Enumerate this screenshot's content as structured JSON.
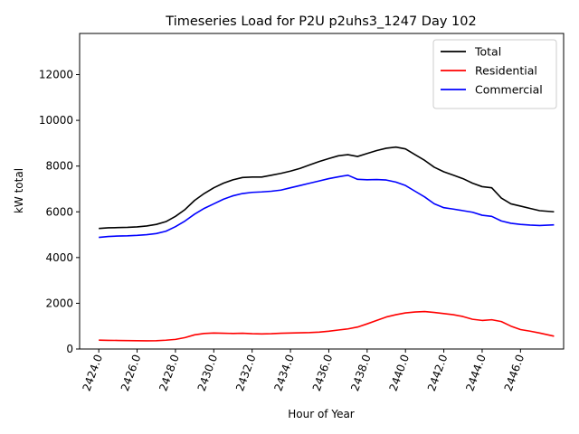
{
  "chart_data": {
    "type": "line",
    "title": "Timeseries Load for P2U p2uhs3_1247  Day 102",
    "xlabel": "Hour of Year",
    "ylabel": "kW total",
    "xlim": [
      2423.0,
      2448.25
    ],
    "ylim": [
      0,
      13800
    ],
    "xticks": [
      2424,
      2426,
      2428,
      2430,
      2432,
      2434,
      2436,
      2438,
      2440,
      2442,
      2444,
      2446
    ],
    "xtick_labels": [
      "2424.0",
      "2426.0",
      "2428.0",
      "2430.0",
      "2432.0",
      "2434.0",
      "2436.0",
      "2438.0",
      "2440.0",
      "2442.0",
      "2444.0",
      "2446.0"
    ],
    "yticks": [
      0,
      2000,
      4000,
      6000,
      8000,
      10000,
      12000
    ],
    "ytick_labels": [
      "0",
      "2000",
      "4000",
      "6000",
      "8000",
      "10000",
      "12000"
    ],
    "legend_position": "top-right",
    "x": [
      2424.0,
      2424.5,
      2425.0,
      2425.5,
      2426.0,
      2426.5,
      2427.0,
      2427.5,
      2428.0,
      2428.5,
      2429.0,
      2429.5,
      2430.0,
      2430.5,
      2431.0,
      2431.5,
      2432.0,
      2432.5,
      2433.0,
      2433.5,
      2434.0,
      2434.5,
      2435.0,
      2435.5,
      2436.0,
      2436.5,
      2437.0,
      2437.5,
      2438.0,
      2438.5,
      2439.0,
      2439.5,
      2440.0,
      2440.5,
      2441.0,
      2441.5,
      2442.0,
      2442.5,
      2443.0,
      2443.5,
      2444.0,
      2444.5,
      2445.0,
      2445.5,
      2446.0,
      2446.5,
      2447.0,
      2447.75
    ],
    "series": [
      {
        "name": "Total",
        "color": "#000000",
        "values": [
          5270,
          5300,
          5310,
          5320,
          5340,
          5380,
          5450,
          5570,
          5800,
          6100,
          6500,
          6800,
          7050,
          7250,
          7400,
          7500,
          7520,
          7520,
          7600,
          7680,
          7780,
          7900,
          8050,
          8200,
          8330,
          8450,
          8500,
          8420,
          8550,
          8680,
          8780,
          8830,
          8750,
          8500,
          8250,
          7950,
          7750,
          7600,
          7450,
          7250,
          7100,
          7050,
          6600,
          6350,
          6250,
          6150,
          6050,
          6000
        ]
      },
      {
        "name": "Residential",
        "color": "#ff0000",
        "values": [
          390,
          380,
          375,
          370,
          365,
          360,
          365,
          385,
          420,
          500,
          620,
          680,
          700,
          690,
          680,
          690,
          670,
          660,
          670,
          690,
          700,
          710,
          720,
          740,
          780,
          830,
          880,
          960,
          1100,
          1250,
          1400,
          1500,
          1580,
          1620,
          1640,
          1600,
          1550,
          1500,
          1420,
          1300,
          1250,
          1280,
          1200,
          1000,
          850,
          780,
          700,
          560
        ]
      },
      {
        "name": "Commercial",
        "color": "#0000ff",
        "values": [
          4880,
          4920,
          4940,
          4950,
          4970,
          5000,
          5050,
          5150,
          5350,
          5600,
          5900,
          6150,
          6350,
          6550,
          6700,
          6800,
          6850,
          6870,
          6900,
          6950,
          7050,
          7150,
          7250,
          7350,
          7450,
          7530,
          7600,
          7420,
          7400,
          7410,
          7390,
          7300,
          7150,
          6900,
          6650,
          6350,
          6180,
          6120,
          6050,
          5980,
          5850,
          5800,
          5600,
          5500,
          5450,
          5420,
          5400,
          5430
        ]
      }
    ]
  }
}
